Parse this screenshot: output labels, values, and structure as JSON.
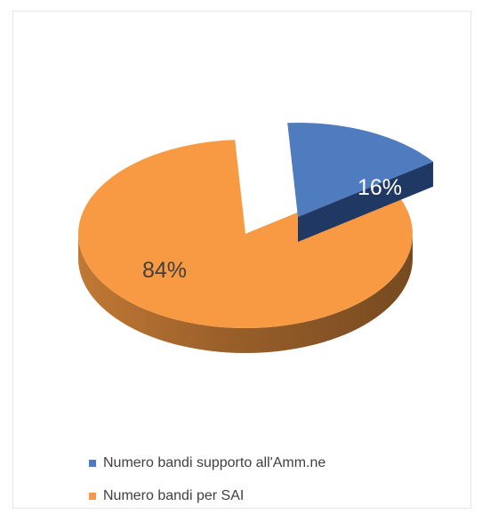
{
  "chart_data": {
    "type": "pie",
    "style": "3d-exploded",
    "title": "",
    "slices": [
      {
        "label": "Numero bandi supporto all'Amm.ne",
        "value": 16,
        "display": "16%",
        "color": "#4f7bbf",
        "exploded": true
      },
      {
        "label": "Numero bandi per SAI",
        "value": 84,
        "display": "84%",
        "color": "#f79a43",
        "exploded": false
      }
    ],
    "legend_position": "bottom"
  }
}
